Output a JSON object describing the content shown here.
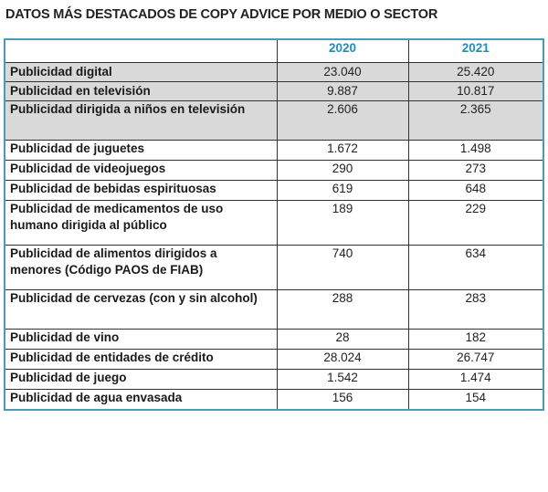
{
  "title": "DATOS MÁS DESTACADOS DE COPY ADVICE POR MEDIO O SECTOR",
  "table": {
    "headers": [
      "",
      "2020",
      "2021"
    ],
    "rows": [
      {
        "label": "Publicidad digital",
        "v2020": "23.040",
        "v2021": "25.420",
        "shaded": true
      },
      {
        "label": "Publicidad en televisión",
        "v2020": "9.887",
        "v2021": "10.817",
        "shaded": true
      },
      {
        "label": "Publicidad dirigida a niños en televisión",
        "v2020": "2.606",
        "v2021": "2.365",
        "shaded": true
      },
      {
        "label": "Publicidad de juguetes",
        "v2020": "1.672",
        "v2021": "1.498",
        "shaded": false
      },
      {
        "label": "Publicidad de videojuegos",
        "v2020": "290",
        "v2021": "273",
        "shaded": false
      },
      {
        "label": "Publicidad de bebidas espirituosas",
        "v2020": "619",
        "v2021": "648",
        "shaded": false
      },
      {
        "label": "Publicidad de medicamentos de uso humano dirigida al público",
        "v2020": "189",
        "v2021": "229",
        "shaded": false
      },
      {
        "label": "Publicidad de alimentos dirigidos a menores (Código PAOS de FIAB)",
        "v2020": "740",
        "v2021": "634",
        "shaded": false
      },
      {
        "label": "Publicidad de cervezas (con y sin alcohol)",
        "v2020": "288",
        "v2021": "283",
        "shaded": false
      },
      {
        "label": "Publicidad de vino",
        "v2020": "28",
        "v2021": "182",
        "shaded": false
      },
      {
        "label": "Publicidad de entidades de crédito",
        "v2020": "28.024",
        "v2021": "26.747",
        "shaded": false
      },
      {
        "label": "Publicidad de juego",
        "v2020": "1.542",
        "v2021": "1.474",
        "shaded": false
      },
      {
        "label": "Publicidad de agua envasada",
        "v2020": "156",
        "v2021": "154",
        "shaded": false
      }
    ]
  },
  "colors": {
    "header_text": "#1f8fb8",
    "table_border": "#4a9bb8",
    "shaded_row": "#d9d9d9"
  }
}
